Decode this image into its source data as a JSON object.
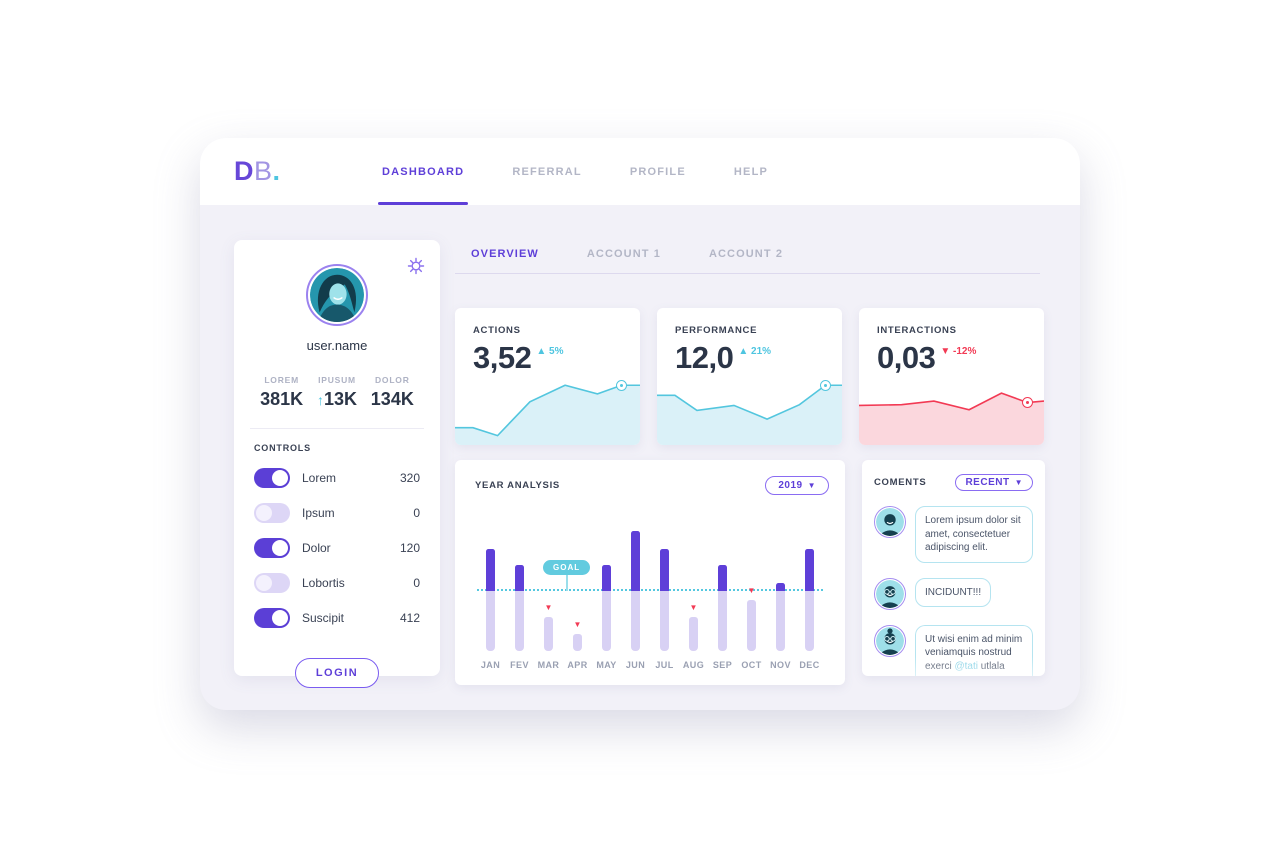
{
  "brand": {
    "letter_bold": "D",
    "letter_light": "B",
    "dot": "."
  },
  "nav": {
    "items": [
      {
        "label": "DASHBOARD",
        "active": true
      },
      {
        "label": "REFERRAL",
        "active": false
      },
      {
        "label": "PROFILE",
        "active": false
      },
      {
        "label": "HELP",
        "active": false
      }
    ]
  },
  "sidebar": {
    "username": "user.name",
    "stats": [
      {
        "label": "LOREM",
        "value": "381K",
        "arrow": ""
      },
      {
        "label": "IPUSUM",
        "value": "13K",
        "arrow": "↑"
      },
      {
        "label": "DOLOR",
        "value": "134K",
        "arrow": ""
      }
    ],
    "controls_title": "CONTROLS",
    "controls": [
      {
        "label": "Lorem",
        "value": "320",
        "on": true
      },
      {
        "label": "Ipsum",
        "value": "0",
        "on": false
      },
      {
        "label": "Dolor",
        "value": "120",
        "on": true
      },
      {
        "label": "Lobortis",
        "value": "0",
        "on": false
      },
      {
        "label": "Suscipit",
        "value": "412",
        "on": true
      }
    ],
    "login_label": "LOGIN"
  },
  "tabs": {
    "items": [
      {
        "label": "OVERVIEW",
        "active": true
      },
      {
        "label": "ACCOUNT 1",
        "active": false
      },
      {
        "label": "ACCOUNT 2",
        "active": false
      }
    ]
  },
  "stat_cards": [
    {
      "title": "ACTIONS",
      "value": "3,52",
      "delta": "5%",
      "direction": "up",
      "spark_index": 0
    },
    {
      "title": "PERFORMANCE",
      "value": "12,0",
      "delta": "21%",
      "direction": "up",
      "spark_index": 1
    },
    {
      "title": "INTERACTIONS",
      "value": "0,03",
      "delta": "-12%",
      "direction": "down",
      "spark_index": 2
    }
  ],
  "year_analysis": {
    "title": "YEAR ANALYSIS",
    "year": "2019",
    "dropdown_glyph": "▼",
    "goal_label": "GOAL",
    "below_goal_glyph": "▼"
  },
  "comments": {
    "title": "COMENTS",
    "filter": "RECENT",
    "dropdown_glyph": "▼",
    "items": [
      {
        "text": "Lorem ipsum dolor sit amet, consectetuer adipiscing elit.",
        "avatar": "man-smile",
        "faded": false,
        "mention": ""
      },
      {
        "text": "INCIDUNT!!!",
        "avatar": "man-glasses",
        "faded": false,
        "mention": ""
      },
      {
        "text": "Ut wisi enim ad minim veniamquis nostrud exerci @tati utlala poe",
        "avatar": "woman-glasses",
        "faded": true,
        "mention": "@tati"
      }
    ]
  },
  "colors": {
    "accent_purple": "#5e3fd8",
    "light_purple_bar": "#d8d1f4",
    "teal": "#53c6de",
    "teal_fill": "#daf1f8",
    "red": "#f23a54",
    "red_fill": "#fbd7dd",
    "dark_text": "#2b3547",
    "muted_text": "#a3a7bb"
  },
  "chart_data": [
    {
      "type": "area",
      "name": "actions-sparkline",
      "x_percent": [
        0,
        9.7,
        23,
        40.5,
        59.5,
        77,
        90,
        100
      ],
      "values": [
        24,
        24,
        13,
        60,
        83,
        71,
        83,
        83
      ],
      "marker_index": 6,
      "color": "#53c6de",
      "fill": "#daf1f8",
      "title": "ACTIONS",
      "ylim": [
        0,
        100
      ],
      "grid": false,
      "legend": false
    },
    {
      "type": "area",
      "name": "performance-sparkline",
      "x_percent": [
        0,
        9.7,
        21.6,
        41.6,
        59.5,
        77,
        91,
        100
      ],
      "values": [
        69,
        69,
        48,
        55,
        36,
        56,
        83,
        83
      ],
      "marker_index": 6,
      "color": "#53c6de",
      "fill": "#daf1f8",
      "title": "PERFORMANCE",
      "ylim": [
        0,
        100
      ],
      "grid": false,
      "legend": false
    },
    {
      "type": "area",
      "name": "interactions-sparkline",
      "x_percent": [
        0,
        23,
        40.5,
        59.5,
        77,
        91,
        100
      ],
      "values": [
        55,
        56,
        61,
        49,
        72,
        59,
        61
      ],
      "marker_index": 5,
      "color": "#f23a54",
      "fill": "#fbd7dd",
      "title": "INTERACTIONS",
      "ylim": [
        0,
        100
      ],
      "grid": false,
      "legend": false
    },
    {
      "type": "bar",
      "name": "year-analysis",
      "title": "YEAR ANALYSIS",
      "categories": [
        "JAN",
        "FEV",
        "MAR",
        "APR",
        "MAY",
        "JUN",
        "JUL",
        "AUG",
        "SEP",
        "OCT",
        "NOV",
        "DEC"
      ],
      "values": [
        102,
        86,
        34,
        17,
        86,
        120,
        102,
        34,
        86,
        51,
        68,
        102
      ],
      "goal": 60,
      "ylim": [
        0,
        130
      ],
      "grid": false,
      "legend": false,
      "goal_line_style": "dotted",
      "goal_line_color": "#55c8e0",
      "bar_color_above_goal": "#5e3fd8",
      "bar_color_base": "#d8d1f4",
      "below_goal_marker_color": "#f23a54"
    }
  ]
}
